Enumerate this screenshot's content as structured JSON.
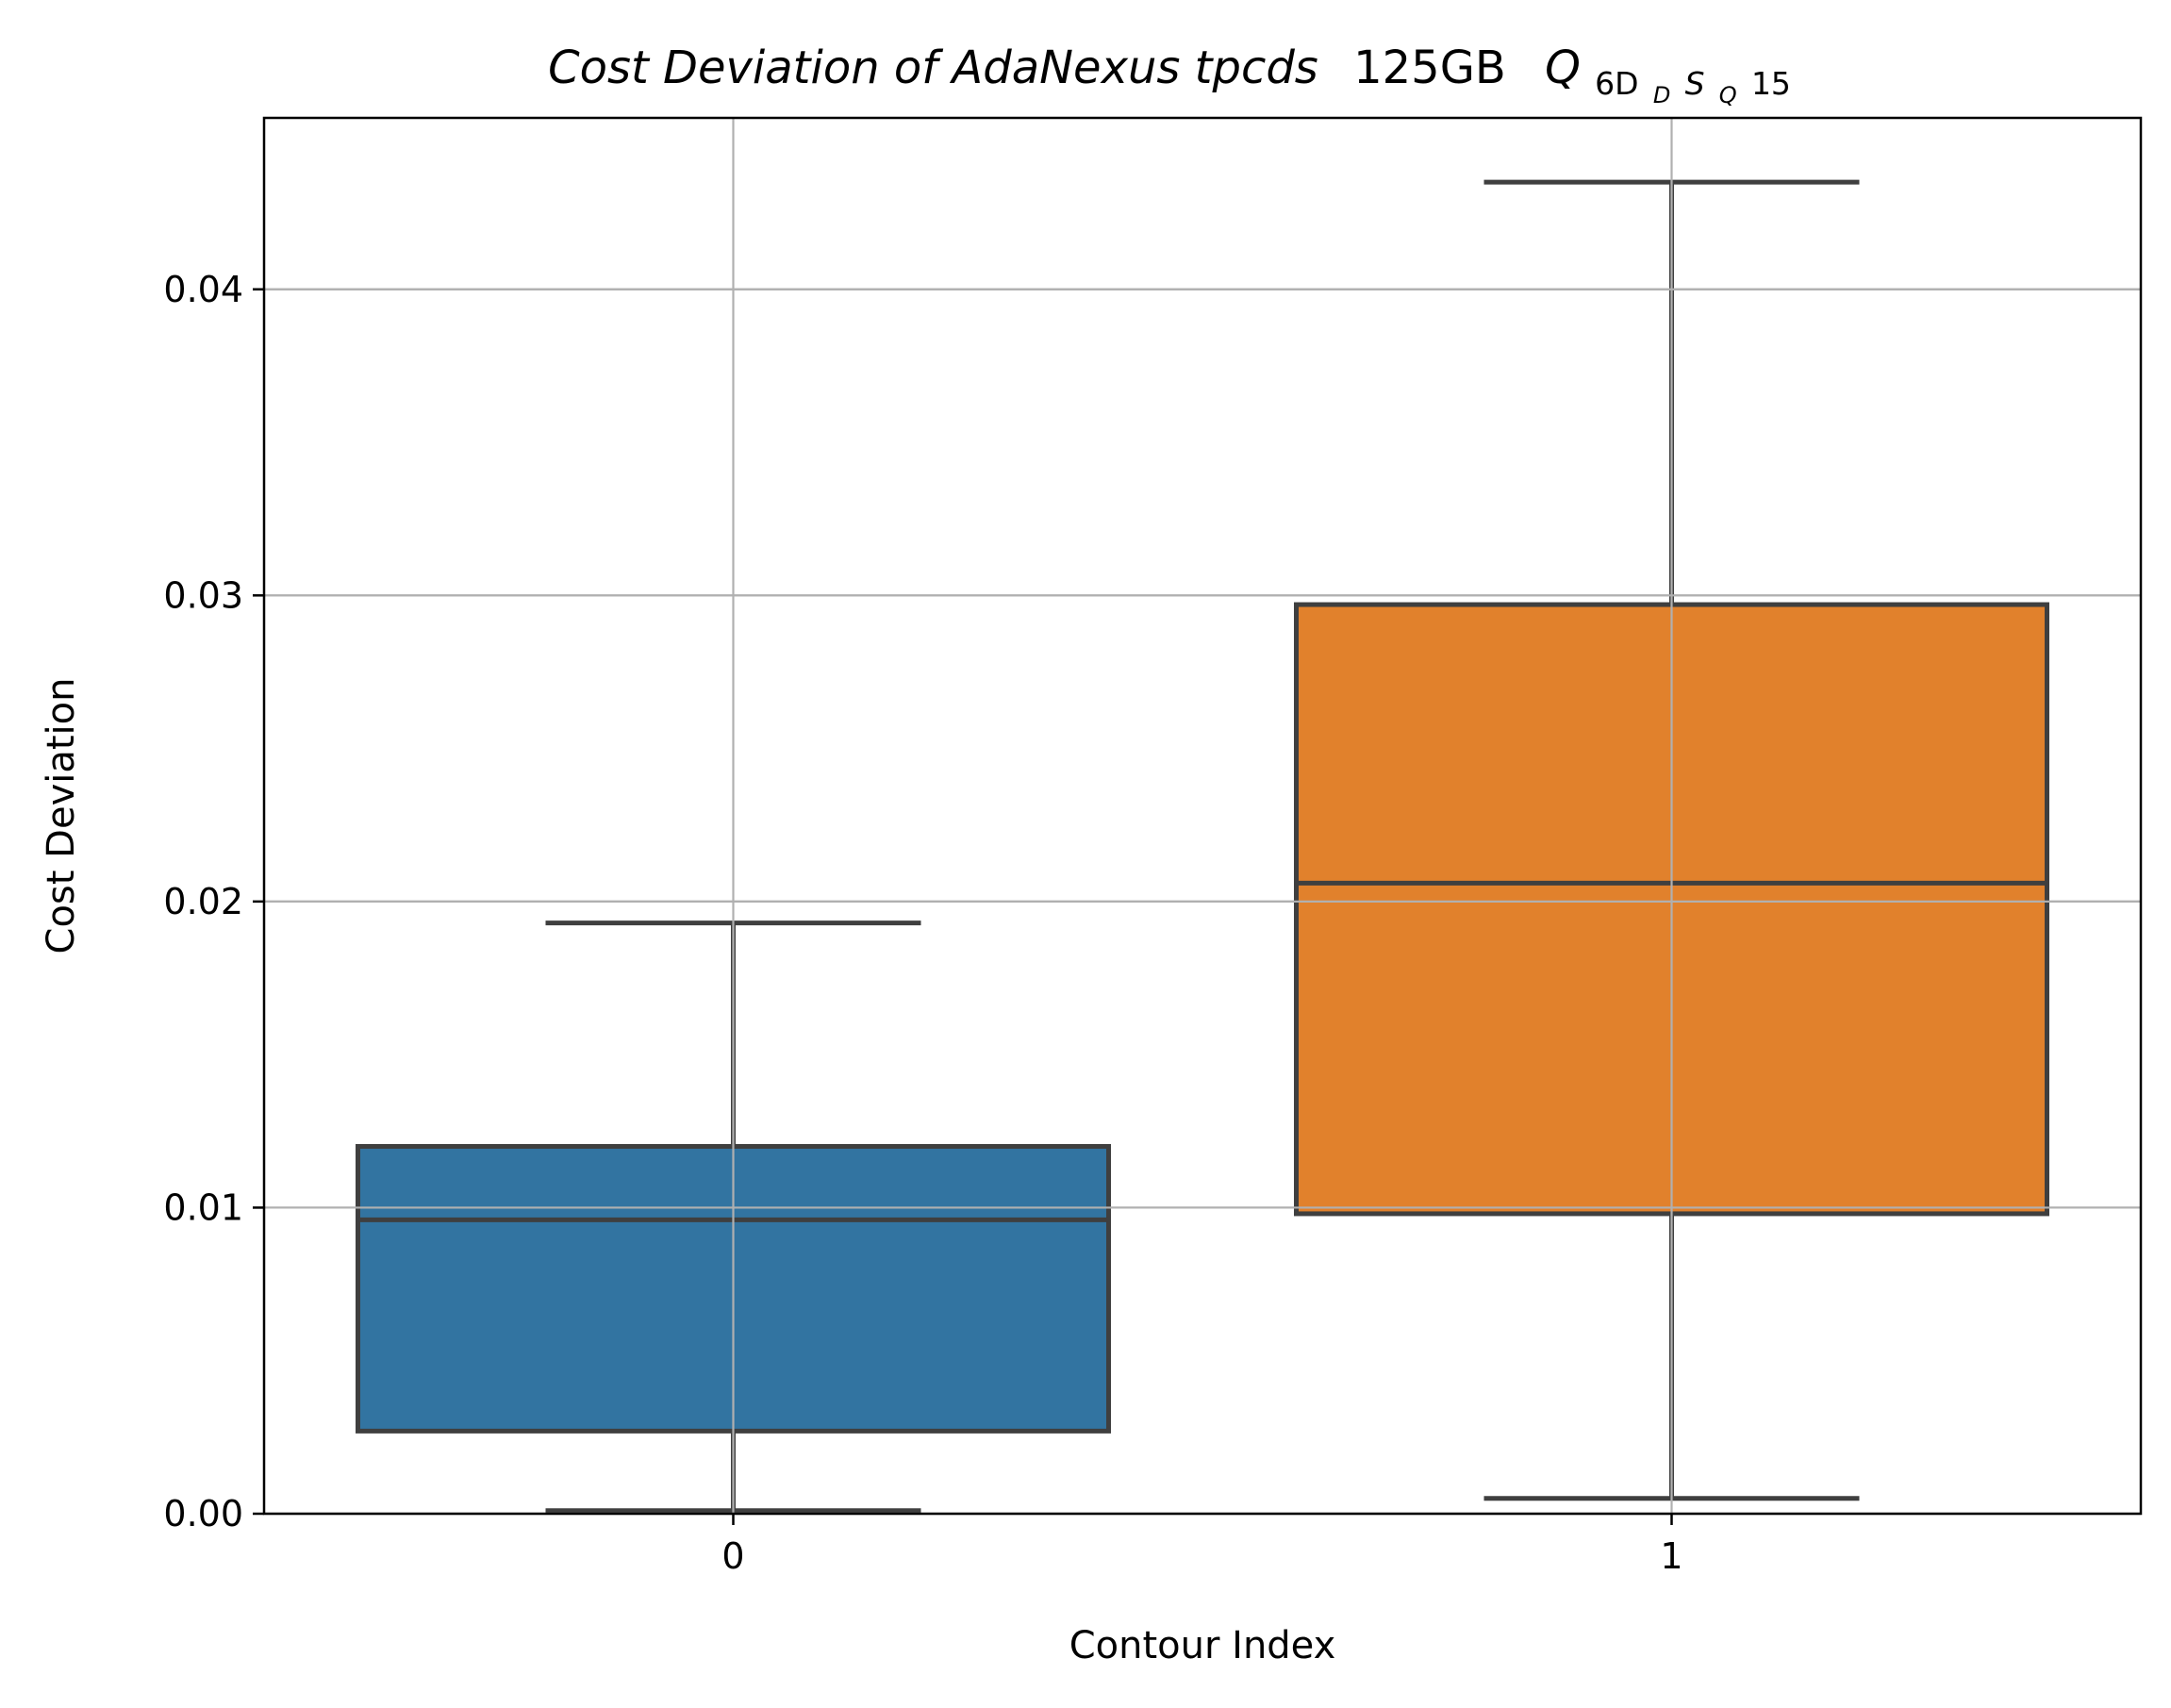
{
  "chart_data": {
    "type": "box",
    "title": {
      "italic_part": "Cost Deviation of AdaNexus tpcds",
      "upright_part": "125GB",
      "math_base": "Q",
      "math_sub_1": "6D",
      "math_sub_sub_1": "D",
      "math_sub_2": "S",
      "math_sub_sub_2": "Q",
      "math_sub_3": "15"
    },
    "xlabel": "Contour Index",
    "ylabel": "Cost Deviation",
    "ylim": [
      0,
      0.0456
    ],
    "yticks": [
      {
        "value": 0.0,
        "label": "0.00"
      },
      {
        "value": 0.01,
        "label": "0.01"
      },
      {
        "value": 0.02,
        "label": "0.02"
      },
      {
        "value": 0.03,
        "label": "0.03"
      },
      {
        "value": 0.04,
        "label": "0.04"
      }
    ],
    "grid": true,
    "categories": [
      "0",
      "1"
    ],
    "boxes": [
      {
        "category": "0",
        "whisker_low": 0.0001,
        "q1": 0.0027,
        "median": 0.0096,
        "q3": 0.012,
        "whisker_high": 0.0193,
        "color": "#3274a1"
      },
      {
        "category": "1",
        "whisker_low": 0.0005,
        "q1": 0.0098,
        "median": 0.0206,
        "q3": 0.0297,
        "whisker_high": 0.0435,
        "color": "#e1812c"
      }
    ],
    "line_color": "#3f3f3f",
    "grid_color": "#b0b0b0"
  }
}
